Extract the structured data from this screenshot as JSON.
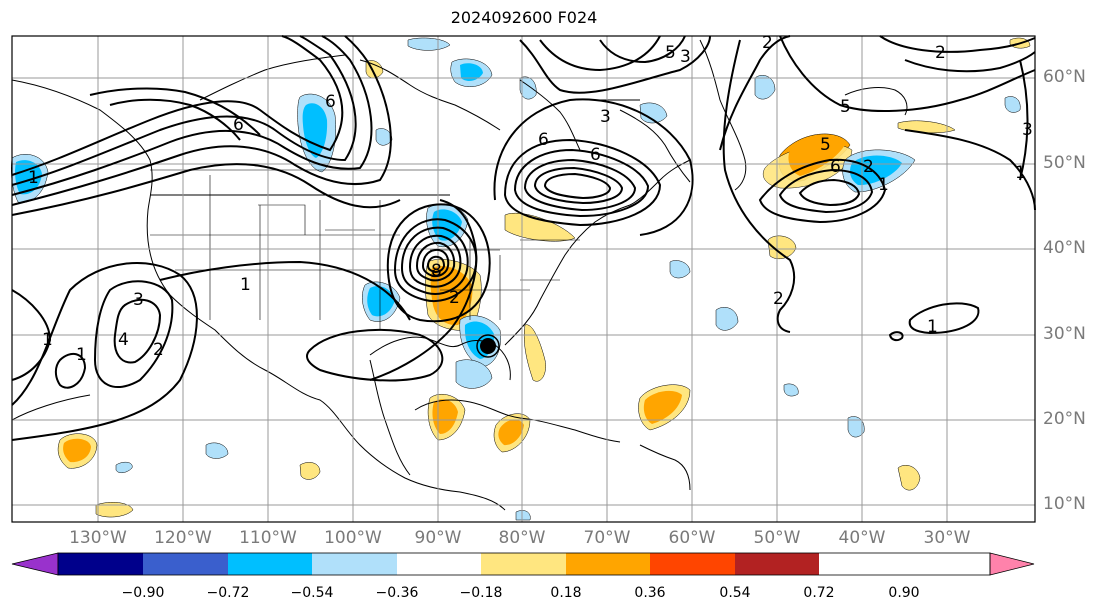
{
  "title": "2024092600 F024",
  "lon_labels": [
    "130°W",
    "120°W",
    "110°W",
    "100°W",
    "90°W",
    "80°W",
    "70°W",
    "60°W",
    "50°W",
    "40°W",
    "30°W"
  ],
  "lat_labels": [
    "60°N",
    "50°N",
    "40°N",
    "30°N",
    "20°N",
    "10°N"
  ],
  "colorbar": {
    "ticks": [
      "−0.90",
      "−0.72",
      "−0.54",
      "−0.36",
      "−0.18",
      "0.18",
      "0.36",
      "0.54",
      "0.72",
      "0.90"
    ],
    "colors": [
      "#9932cc",
      "#00008b",
      "#3a5fcd",
      "#00bfff",
      "#b0e0fa",
      "#ffffff",
      "#ffe680",
      "#ffa500",
      "#ff4500",
      "#b22222",
      "#ff82ab"
    ],
    "extend": "both"
  },
  "contour_labels": [
    "1",
    "2",
    "3",
    "4",
    "5",
    "6",
    "7",
    "8",
    "1",
    "2",
    "3",
    "4",
    "5",
    "6",
    "2",
    "3",
    "4",
    "5",
    "6",
    "1",
    "2",
    "1",
    "1",
    "3",
    "4",
    "1",
    "2",
    "1",
    "2",
    "2"
  ],
  "map": {
    "region": "North Atlantic / North America",
    "grid": true,
    "marker": "circle near 85°W 29°N"
  }
}
